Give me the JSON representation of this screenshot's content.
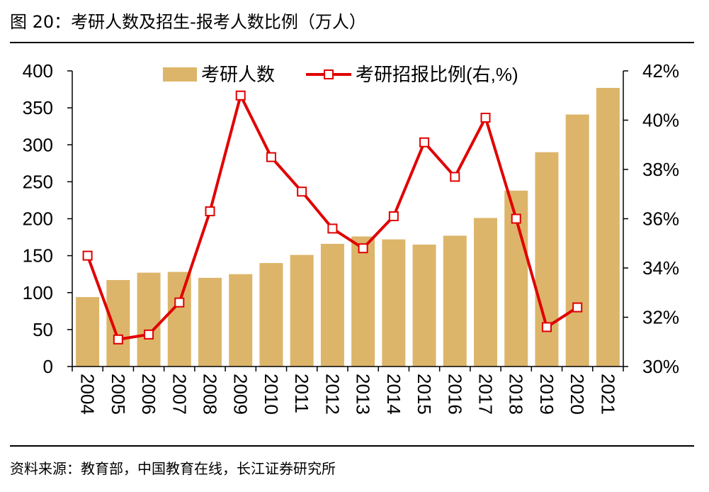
{
  "title": "图 20：考研人数及招生-报考人数比例（万人）",
  "source": "资料来源：教育部，中国教育在线，长江证券研究所",
  "colors": {
    "bar": "#DDB56A",
    "line": "#E00000",
    "marker_fill": "#FFFFFF",
    "axis": "#000000"
  },
  "chart_data": {
    "type": "bar+line",
    "title": "考研人数及招生-报考人数比例（万人）",
    "categories": [
      "2004",
      "2005",
      "2006",
      "2007",
      "2008",
      "2009",
      "2010",
      "2011",
      "2012",
      "2013",
      "2014",
      "2015",
      "2016",
      "2017",
      "2018",
      "2019",
      "2020",
      "2021"
    ],
    "series": [
      {
        "name": "考研人数",
        "type": "bar",
        "axis": "left",
        "values": [
          94,
          117,
          127,
          128,
          120,
          125,
          140,
          151,
          166,
          176,
          172,
          165,
          177,
          201,
          238,
          290,
          341,
          377
        ]
      },
      {
        "name": "考研招报比例(右,%)",
        "type": "line",
        "axis": "right",
        "values": [
          34.5,
          31.1,
          31.3,
          32.6,
          36.3,
          41.0,
          38.5,
          37.1,
          35.6,
          34.8,
          36.1,
          39.1,
          37.7,
          40.1,
          36.0,
          31.6,
          32.4,
          null
        ]
      }
    ],
    "left_axis": {
      "ylim": [
        0,
        400
      ],
      "ticks": [
        0,
        50,
        100,
        150,
        200,
        250,
        300,
        350,
        400
      ],
      "tick_labels": [
        "0",
        "50",
        "100",
        "150",
        "200",
        "250",
        "300",
        "350",
        "400"
      ]
    },
    "right_axis": {
      "ylim": [
        30,
        42
      ],
      "ticks": [
        30,
        32,
        34,
        36,
        38,
        40,
        42
      ],
      "tick_labels": [
        "30%",
        "32%",
        "34%",
        "36%",
        "38%",
        "40%",
        "42%"
      ]
    },
    "legend": {
      "placement": "top-center",
      "items": [
        "考研人数",
        "考研招报比例(右,%)"
      ]
    }
  }
}
